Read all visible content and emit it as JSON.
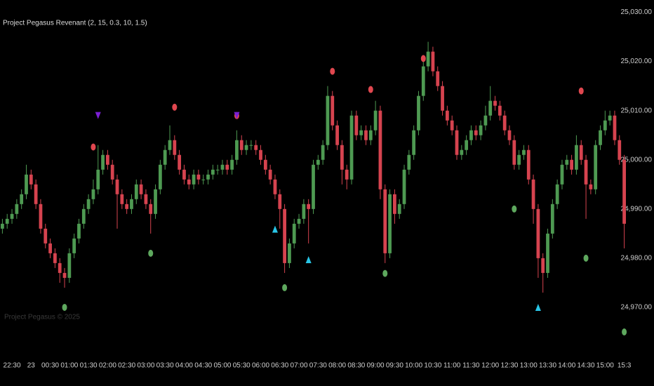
{
  "chart_data": {
    "type": "candlestick",
    "title": "Project Pegasus Revenant (2, 15, 0.3, 10, 1.5)",
    "watermark": "Project Pegasus © 2025",
    "up_color": "#4e9a52",
    "down_color": "#d6434f",
    "categories": [
      null,
      null,
      "22:30",
      null,
      null,
      null,
      "23",
      null,
      null,
      null,
      "00:30",
      null,
      null,
      null,
      "01:00",
      null,
      null,
      null,
      "01:30",
      null,
      null,
      null,
      "02:00",
      null,
      null,
      null,
      "02:30",
      null,
      null,
      null,
      "03:00",
      null,
      null,
      null,
      "03:30",
      null,
      null,
      null,
      "04:00",
      null,
      null,
      null,
      "04:30",
      null,
      null,
      null,
      "05:00",
      null,
      null,
      null,
      "05:30",
      null,
      null,
      null,
      "06:00",
      null,
      null,
      null,
      "06:30",
      null,
      null,
      null,
      "07:00",
      null,
      null,
      null,
      "07:30",
      null,
      null,
      null,
      "08:00",
      null,
      null,
      null,
      "08:30",
      null,
      null,
      null,
      "09:00",
      null,
      null,
      null,
      "09:30",
      null,
      null,
      null,
      "10:00",
      null,
      null,
      null,
      "10:30",
      null,
      null,
      null,
      "11:00",
      null,
      null,
      null,
      "11:30",
      null,
      null,
      null,
      "12:00",
      null,
      null,
      null,
      "12:30",
      null,
      null,
      null,
      "13:00",
      null,
      null,
      null,
      "13:30",
      null,
      null,
      null,
      "14:00",
      null,
      null,
      null,
      "14:30",
      null,
      null,
      null,
      "15:00",
      null,
      null,
      null,
      "15:3"
    ],
    "open": [
      24986,
      24987,
      24988,
      24989,
      24991,
      24993,
      24997,
      24995,
      24991,
      24986,
      24983,
      24981,
      24979,
      24977,
      24976,
      24981,
      24984,
      24987,
      24990,
      24992,
      24994,
      24998,
      25001,
      24999,
      24996,
      24993,
      24991,
      24990,
      24992,
      24995,
      24993,
      24991,
      24989,
      24994,
      24999,
      25002,
      25004,
      25001,
      24998,
      24996,
      24995,
      24997,
      24996,
      24996,
      24997,
      24998,
      24998,
      24999,
      24998,
      25000,
      25004,
      25002,
      25003,
      25003,
      25002,
      25000,
      24998,
      24996,
      24993,
      24990,
      24979,
      24983,
      24987,
      24988,
      24991,
      24990,
      24999,
      25000,
      25003,
      25013,
      25007,
      25003,
      24998,
      24996,
      25009,
      25005,
      25006,
      25004,
      25006,
      25010,
      24994,
      24981,
      24993,
      24989,
      24991,
      24998,
      25001,
      25006,
      25013,
      25019,
      25022,
      25018,
      25015,
      25010,
      25008,
      25006,
      25001,
      25002,
      25004,
      25006,
      25005,
      25007,
      25009,
      25012,
      25011,
      25009,
      25006,
      25004,
      24999,
      25001,
      25002,
      24996,
      24990,
      24980,
      24977,
      24985,
      24991,
      24995,
      24999,
      25000,
      24998,
      25003,
      25000,
      24995,
      24994,
      25003,
      25006,
      25008,
      25009,
      25004,
      25000
    ],
    "high": [
      24988,
      24989,
      24990,
      24992,
      24994,
      24999,
      24998,
      24996,
      24992,
      24987,
      24984,
      24982,
      24980,
      24978,
      24982,
      24985,
      24988,
      24991,
      24993,
      24996,
      25003,
      25002,
      25002,
      25000,
      24997,
      24994,
      24992,
      24993,
      24996,
      24996,
      24994,
      24992,
      24995,
      25000,
      25003,
      25007,
      25005,
      25002,
      24999,
      24997,
      24998,
      24998,
      24997,
      24998,
      24999,
      24999,
      25000,
      25000,
      25001,
      25006,
      25005,
      25004,
      25004,
      25004,
      25003,
      25001,
      24999,
      24997,
      24994,
      24991,
      24984,
      24988,
      24989,
      24992,
      24992,
      25000,
      25001,
      25004,
      25015,
      25014,
      25008,
      25004,
      24999,
      25010,
      25010,
      25007,
      25007,
      25007,
      25012,
      25011,
      24995,
      24994,
      24994,
      24992,
      24999,
      25002,
      25007,
      25014,
      25021,
      25024,
      25023,
      25019,
      25016,
      25011,
      25009,
      25007,
      25003,
      25005,
      25007,
      25007,
      25008,
      25011,
      25015,
      25013,
      25012,
      25010,
      25007,
      25005,
      25002,
      25003,
      25003,
      24997,
      24991,
      24981,
      24986,
      24992,
      24996,
      25000,
      25001,
      25001,
      25005,
      25004,
      25001,
      24996,
      25004,
      25007,
      25010,
      25010,
      25010,
      25005,
      25001
    ],
    "low": [
      24985,
      24986,
      24987,
      24988,
      24990,
      24992,
      24994,
      24990,
      24985,
      24982,
      24980,
      24978,
      24975,
      24974,
      24975,
      24980,
      24983,
      24986,
      24989,
      24991,
      24993,
      24997,
      24998,
      24995,
      24986,
      24990,
      24989,
      24989,
      24991,
      24992,
      24990,
      24985,
      24988,
      24993,
      24998,
      25001,
      25000,
      24997,
      24995,
      24994,
      24994,
      24995,
      24995,
      24995,
      24996,
      24997,
      24997,
      24997,
      24997,
      24999,
      25001,
      25001,
      25002,
      25001,
      24999,
      24997,
      24995,
      24992,
      24986,
      24977,
      24978,
      24982,
      24986,
      24987,
      24983,
      24989,
      24998,
      24999,
      25002,
      25006,
      25002,
      24995,
      24994,
      24995,
      25004,
      25004,
      25003,
      25003,
      25005,
      24992,
      24979,
      24980,
      24987,
      24988,
      24990,
      24997,
      25000,
      25005,
      25012,
      25018,
      25017,
      25014,
      25009,
      25007,
      25005,
      25000,
      25000,
      25001,
      25003,
      25004,
      25004,
      25006,
      25008,
      25010,
      25008,
      25005,
      25003,
      24998,
      24998,
      25000,
      24995,
      24987,
      24976,
      24973,
      24976,
      24984,
      24990,
      24994,
      24998,
      24997,
      24997,
      24999,
      24988,
      24993,
      24993,
      25002,
      25005,
      25007,
      25003,
      24999,
      24982
    ],
    "close": [
      24987,
      24988,
      24989,
      24991,
      24993,
      24997,
      24995,
      24991,
      24986,
      24983,
      24981,
      24979,
      24977,
      24976,
      24981,
      24984,
      24987,
      24990,
      24992,
      24994,
      24998,
      25001,
      24999,
      24996,
      24993,
      24991,
      24990,
      24992,
      24995,
      24993,
      24991,
      24989,
      24994,
      24999,
      25002,
      25004,
      25001,
      24998,
      24996,
      24995,
      24997,
      24996,
      24996,
      24997,
      24998,
      24998,
      24999,
      24998,
      25000,
      25004,
      25002,
      25003,
      25003,
      25002,
      25000,
      24998,
      24996,
      24993,
      24990,
      24979,
      24983,
      24987,
      24988,
      24991,
      24990,
      24999,
      25000,
      25003,
      25013,
      25007,
      25003,
      24998,
      24996,
      25009,
      25005,
      25006,
      25004,
      25006,
      25010,
      24994,
      24981,
      24993,
      24989,
      24991,
      24998,
      25001,
      25006,
      25013,
      25019,
      25022,
      25018,
      25015,
      25010,
      25008,
      25006,
      25001,
      25002,
      25004,
      25006,
      25005,
      25007,
      25009,
      25012,
      25011,
      25009,
      25006,
      25004,
      24999,
      25001,
      25002,
      24996,
      24990,
      24980,
      24977,
      24985,
      24991,
      24995,
      24999,
      25000,
      24998,
      25003,
      25000,
      24995,
      24994,
      25003,
      25006,
      25008,
      25009,
      25004,
      25000,
      24987
    ],
    "sell_dots": {
      "color": "#e0474f",
      "x": [
        19,
        36,
        49,
        69,
        77,
        88,
        121
      ],
      "values": [
        25002.6,
        25010.7,
        25009,
        25018,
        25014.3,
        25020.6,
        25014
      ]
    },
    "buy_dots": {
      "color": "#5ea85e",
      "x": [
        13,
        31,
        59,
        80,
        107,
        122,
        130
      ],
      "values": [
        24970,
        24981,
        24974,
        24976.9,
        24990,
        24980,
        24965
      ]
    },
    "down_triangles": {
      "color": "#7b1fd4",
      "x": [
        20,
        49
      ],
      "values": [
        25009,
        25009
      ]
    },
    "up_triangles": {
      "color": "#29c5e6",
      "x": [
        57,
        64,
        112
      ],
      "values": [
        24985.9,
        24979.7,
        24970
      ]
    },
    "ylim": [
      24964,
      25032.5
    ],
    "yticks": [
      {
        "value": 24970,
        "label": "24,970.00"
      },
      {
        "value": 24980,
        "label": "24,980.00"
      },
      {
        "value": 24990,
        "label": "24,990.00"
      },
      {
        "value": 25000,
        "label": "25,000.00"
      },
      {
        "value": 25010,
        "label": "25,010.00"
      },
      {
        "value": 25020,
        "label": "25,020.00"
      },
      {
        "value": 25030,
        "label": "25,030.00"
      }
    ]
  }
}
